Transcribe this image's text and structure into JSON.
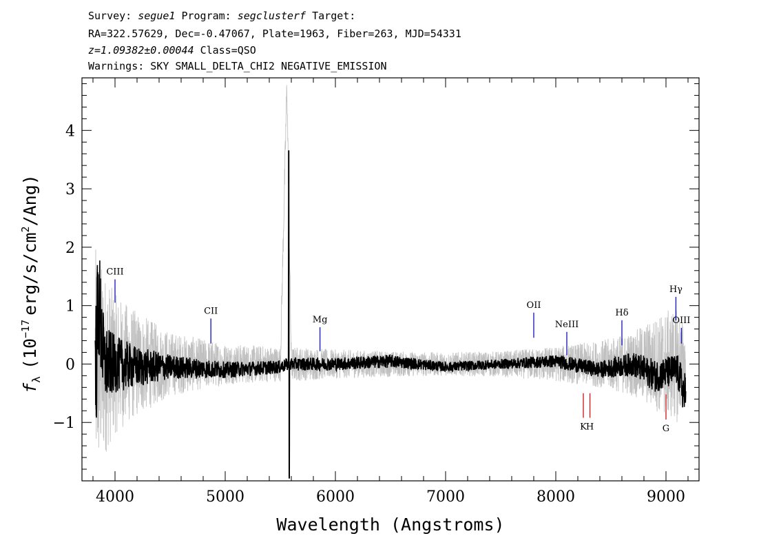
{
  "header": {
    "survey_label": "Survey:",
    "survey": "segue1",
    "program_label": "Program:",
    "program": "segclusterf",
    "target_label": "Target:",
    "line2": "RA=322.57629, Dec=-0.47067, Plate=1963, Fiber=263, MJD=54331",
    "redshift": "z=1.09382±0.00044",
    "class_text": "Class=QSO",
    "warnings": "Warnings: SKY SMALL_DELTA_CHI2 NEGATIVE_EMISSION"
  },
  "chart_data": {
    "type": "line",
    "xlabel": "Wavelength (Angstroms)",
    "ylabel_parts": {
      "symbol": "f",
      "symbol_sub": "λ",
      "units_open": "(10",
      "units_exp": "−17",
      "units_mid": "erg/s/cm",
      "units_exp2": "2",
      "units_close": "/Ang)"
    },
    "xlim": [
      3700,
      9300
    ],
    "ylim": [
      -2.0,
      4.9
    ],
    "xticks": [
      4000,
      5000,
      6000,
      7000,
      8000,
      9000
    ],
    "xtick_labels": [
      "4000",
      "5000",
      "6000",
      "7000",
      "8000",
      "9000"
    ],
    "yticks": [
      -1,
      0,
      1,
      2,
      3,
      4
    ],
    "ytick_labels": [
      "−1",
      "0",
      "1",
      "2",
      "3",
      "4"
    ],
    "series": [
      {
        "style": "gray-error-band",
        "color": "#c0c0c0",
        "x": [
          3820,
          3900,
          4000,
          4200,
          4500,
          5000,
          5500,
          5560,
          5600,
          6000,
          6500,
          7000,
          7500,
          8000,
          8400,
          8700,
          8900,
          9100,
          9180
        ],
        "y": [
          0.0,
          0.0,
          0.0,
          0.0,
          0.0,
          0.0,
          0.0,
          4.8,
          0.0,
          0.0,
          0.0,
          0.0,
          0.0,
          0.0,
          0.0,
          0.0,
          0.0,
          0.0,
          0.0
        ],
        "noise": [
          2.0,
          1.6,
          1.2,
          0.9,
          0.55,
          0.35,
          0.3,
          0.3,
          0.3,
          0.25,
          0.22,
          0.2,
          0.22,
          0.3,
          0.4,
          0.55,
          0.8,
          1.0,
          0.6
        ]
      },
      {
        "style": "black-flux",
        "color": "#000000",
        "x": [
          3820,
          3850,
          3900,
          4000,
          4200,
          4500,
          5000,
          5500,
          5575,
          5577,
          5580,
          6000,
          6500,
          7000,
          7500,
          8000,
          8400,
          8700,
          8900,
          9100,
          9180
        ],
        "y": [
          -0.35,
          1.1,
          0.0,
          0.0,
          -0.05,
          -0.05,
          -0.1,
          -0.05,
          0.0,
          3.65,
          -1.95,
          0.0,
          0.05,
          -0.05,
          0.0,
          0.05,
          -0.1,
          0.0,
          -0.2,
          -0.1,
          -0.6
        ],
        "noise": [
          0.9,
          0.8,
          0.5,
          0.35,
          0.25,
          0.15,
          0.1,
          0.08,
          0.08,
          0.0,
          0.0,
          0.08,
          0.08,
          0.06,
          0.06,
          0.08,
          0.1,
          0.15,
          0.2,
          0.2,
          0.3
        ]
      }
    ],
    "line_markers": [
      {
        "label": "CIII",
        "x": 4000,
        "y0": 1.05,
        "y1": 1.45,
        "color": "#1f1fbf",
        "side": "above"
      },
      {
        "label": "CII",
        "x": 4870,
        "y0": 0.35,
        "y1": 0.78,
        "color": "#1f1fbf",
        "side": "above"
      },
      {
        "label": "Mg",
        "x": 5860,
        "y0": 0.22,
        "y1": 0.63,
        "color": "#1f1fbf",
        "side": "above"
      },
      {
        "label": "OII",
        "x": 7800,
        "y0": 0.45,
        "y1": 0.88,
        "color": "#1f1fbf",
        "side": "above"
      },
      {
        "label": "NeIII",
        "x": 8100,
        "y0": 0.15,
        "y1": 0.55,
        "color": "#1f1fbf",
        "side": "above"
      },
      {
        "label": "Hδ",
        "x": 8600,
        "y0": 0.32,
        "y1": 0.75,
        "color": "#1f1fbf",
        "side": "above"
      },
      {
        "label": "Hγ",
        "x": 9090,
        "y0": 0.75,
        "y1": 1.15,
        "color": "#1f1fbf",
        "side": "above"
      },
      {
        "label": "OIII",
        "x": 9140,
        "y0": 0.35,
        "y1": 0.62,
        "color": "#1f1fbf",
        "side": "above"
      },
      {
        "label": "K",
        "x": 8250,
        "y0": -0.5,
        "y1": -0.92,
        "color": "#cc2222",
        "side": "below"
      },
      {
        "label": "H",
        "x": 8310,
        "y0": -0.5,
        "y1": -0.92,
        "color": "#cc2222",
        "side": "below"
      },
      {
        "label": "G",
        "x": 9000,
        "y0": -0.52,
        "y1": -0.95,
        "color": "#cc2222",
        "side": "below"
      }
    ]
  }
}
